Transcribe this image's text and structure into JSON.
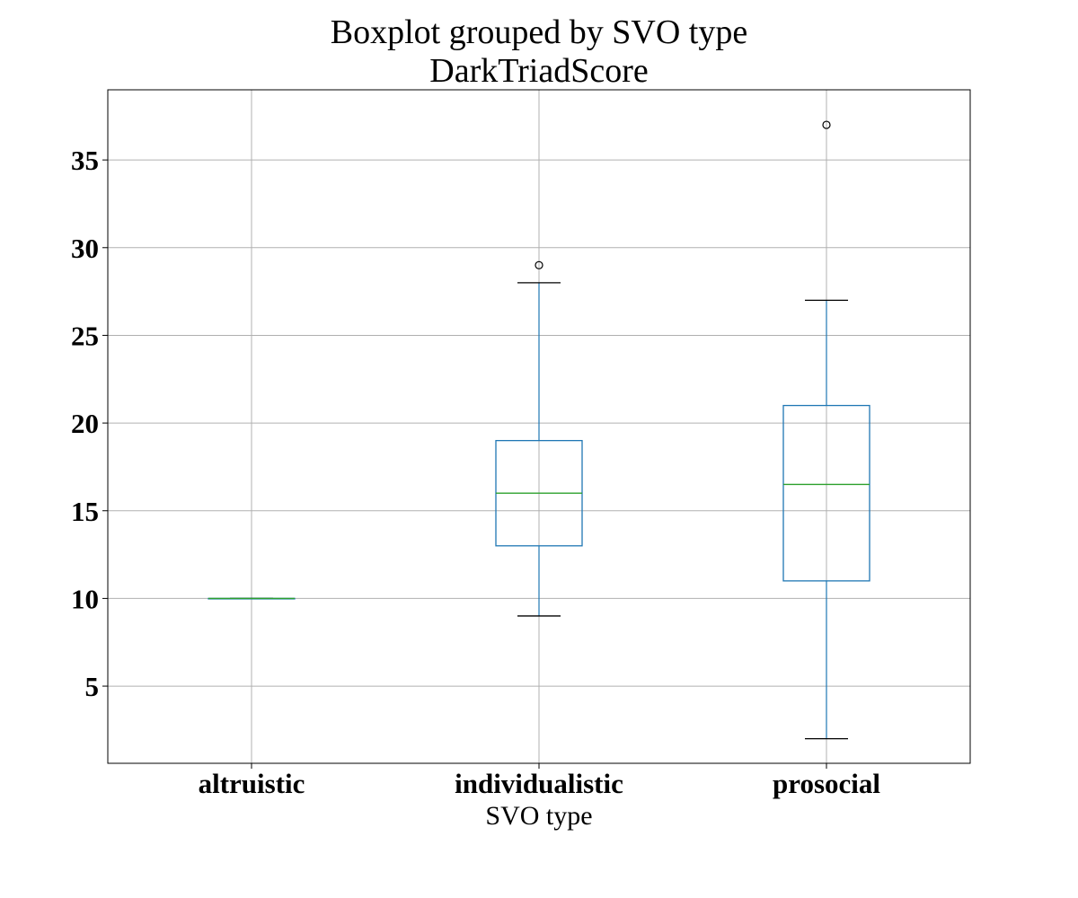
{
  "chart_data": {
    "type": "boxplot",
    "title": "Boxplot grouped by SVO type",
    "subtitle": "DarkTriadScore",
    "xlabel": "SVO type",
    "ylabel": "",
    "categories": [
      "altruistic",
      "individualistic",
      "prosocial"
    ],
    "ylim": [
      0.6,
      39
    ],
    "yticks": [
      5,
      10,
      15,
      20,
      25,
      30,
      35
    ],
    "grid": true,
    "colors": {
      "box": "#1f77b4",
      "median": "#2ca02c",
      "whisker": "#1f77b4",
      "cap": "#000000",
      "flier": "#000000",
      "grid": "#b0b0b0"
    },
    "boxes": [
      {
        "category": "altruistic",
        "whislo": 10,
        "q1": 10,
        "med": 10,
        "q3": 10,
        "whishi": 10,
        "fliers": []
      },
      {
        "category": "individualistic",
        "whislo": 9,
        "q1": 13,
        "med": 16,
        "q3": 19,
        "whishi": 28,
        "fliers": [
          29
        ]
      },
      {
        "category": "prosocial",
        "whislo": 2,
        "q1": 11,
        "med": 16.5,
        "q3": 21,
        "whishi": 27,
        "fliers": [
          37
        ]
      }
    ]
  }
}
